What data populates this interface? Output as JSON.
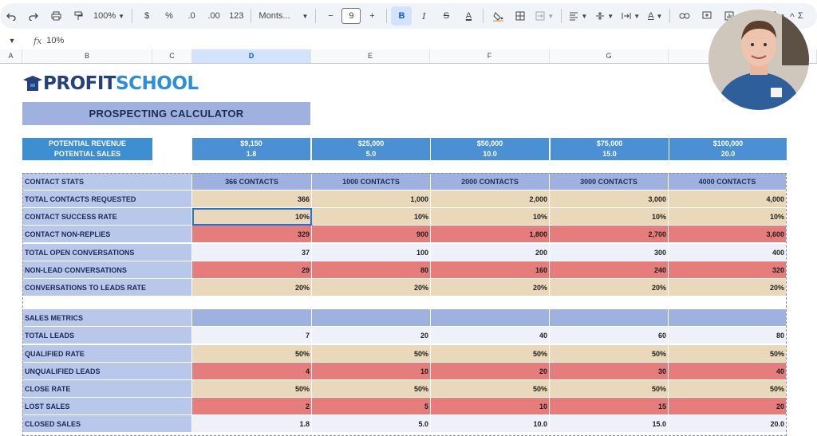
{
  "toolbar": {
    "zoom": "100%",
    "currency": "$",
    "percent": "%",
    "dec_less": ".0",
    "dec_more": ".00",
    "number_format": "123",
    "font": "Monts...",
    "font_size": "9",
    "bold": "B",
    "italic": "I",
    "strike": "S",
    "text_color": "A",
    "text_color2": "A",
    "sum": "Σ"
  },
  "formula_bar": {
    "fx": "fx",
    "content": "10%"
  },
  "columns": [
    "A",
    "B",
    "C",
    "D",
    "E",
    "F",
    "G"
  ],
  "logo": {
    "part1": "PROFIT",
    "part2": "SCHOOL"
  },
  "title": "PROSPECTING CALCULATOR",
  "potential": {
    "label_revenue": "POTENTIAL REVENUE",
    "label_sales": "POTENTIAL SALES",
    "values": [
      {
        "revenue": "$9,150",
        "sales": "1.8"
      },
      {
        "revenue": "$25,000",
        "sales": "5.0"
      },
      {
        "revenue": "$50,000",
        "sales": "10.0"
      },
      {
        "revenue": "$75,000",
        "sales": "15.0"
      },
      {
        "revenue": "$100,000",
        "sales": "20.0"
      }
    ]
  },
  "contact_stats": {
    "header": "CONTACT STATS",
    "columns": [
      "366 CONTACTS",
      "1000 CONTACTS",
      "2000 CONTACTS",
      "3000 CONTACTS",
      "4000 CONTACTS"
    ],
    "rows": [
      {
        "label": "TOTAL CONTACTS REQUESTED",
        "values": [
          "366",
          "1,000",
          "2,000",
          "3,000",
          "4,000"
        ]
      },
      {
        "label": "CONTACT SUCCESS RATE",
        "values": [
          "10%",
          "10%",
          "10%",
          "10%",
          "10%"
        ]
      },
      {
        "label": "CONTACT NON-REPLIES",
        "values": [
          "329",
          "900",
          "1,800",
          "2,700",
          "3,600"
        ]
      },
      {
        "label": "TOTAL OPEN CONVERSATIONS",
        "values": [
          "37",
          "100",
          "200",
          "300",
          "400"
        ]
      },
      {
        "label": "NON-LEAD CONVERSATIONS",
        "values": [
          "29",
          "80",
          "160",
          "240",
          "320"
        ]
      },
      {
        "label": "CONVERSATIONS TO LEADS RATE",
        "values": [
          "20%",
          "20%",
          "20%",
          "20%",
          "20%"
        ]
      }
    ]
  },
  "sales_metrics": {
    "header": "SALES METRICS",
    "rows": [
      {
        "label": "TOTAL LEADS",
        "values": [
          "7",
          "20",
          "40",
          "60",
          "80"
        ]
      },
      {
        "label": "QUALIFIED RATE",
        "values": [
          "50%",
          "50%",
          "50%",
          "50%",
          "50%"
        ]
      },
      {
        "label": "UNQUALIFIED LEADS",
        "values": [
          "4",
          "10",
          "20",
          "30",
          "40"
        ]
      },
      {
        "label": "CLOSE RATE",
        "values": [
          "50%",
          "50%",
          "50%",
          "50%",
          "50%"
        ]
      },
      {
        "label": "LOST SALES",
        "values": [
          "2",
          "5",
          "10",
          "15",
          "20"
        ]
      },
      {
        "label": "CLOSED SALES",
        "values": [
          "1.8",
          "5.0",
          "10.0",
          "15.0",
          "20.0"
        ]
      }
    ]
  },
  "colors": {
    "tan": "#e9d8b9",
    "red": "#e47d7b",
    "blue_header": "#4a90d2",
    "label_bg": "#b9c7ea"
  }
}
